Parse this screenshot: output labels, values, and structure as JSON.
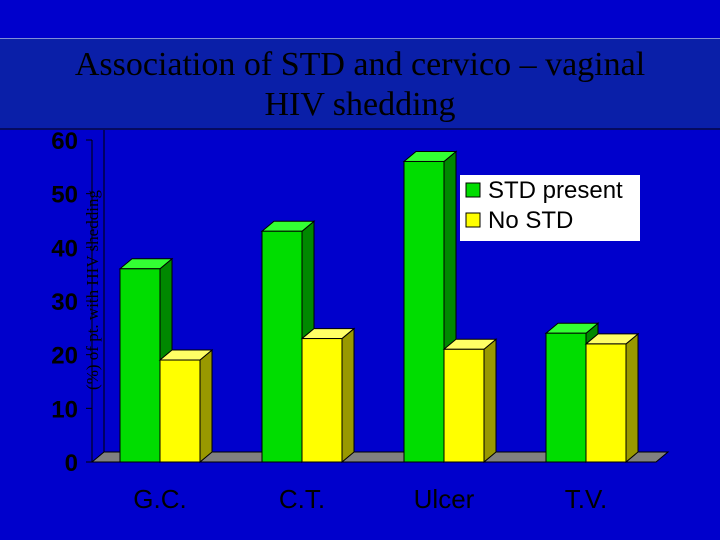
{
  "colors": {
    "background": "#0000cc",
    "title_bg": "#0a1fa8",
    "series_green": "#00dd00",
    "series_green_side": "#008800",
    "series_green_top": "#33ff33",
    "series_yellow": "#ffff00",
    "series_yellow_side": "#999900",
    "series_yellow_top": "#ffff66",
    "floor": "#808080"
  },
  "chart_data": {
    "type": "bar",
    "title": "Association of STD and cervico – vaginal HIV shedding",
    "title_line1": "Association of STD and cervico – vaginal",
    "title_line2": "HIV shedding",
    "xlabel": "",
    "ylabel": "(%) of pt. with HIV shedding",
    "ylim": [
      0,
      60
    ],
    "yticks": [
      0,
      10,
      20,
      30,
      40,
      50,
      60
    ],
    "categories": [
      "G.C.",
      "C.T.",
      "Ulcer",
      "T.V."
    ],
    "series": [
      {
        "name": "STD present",
        "values": [
          36,
          43,
          56,
          24
        ]
      },
      {
        "name": "No STD",
        "values": [
          19,
          23,
          21,
          22
        ]
      }
    ],
    "legend_position": "top-right",
    "style": "3d"
  }
}
